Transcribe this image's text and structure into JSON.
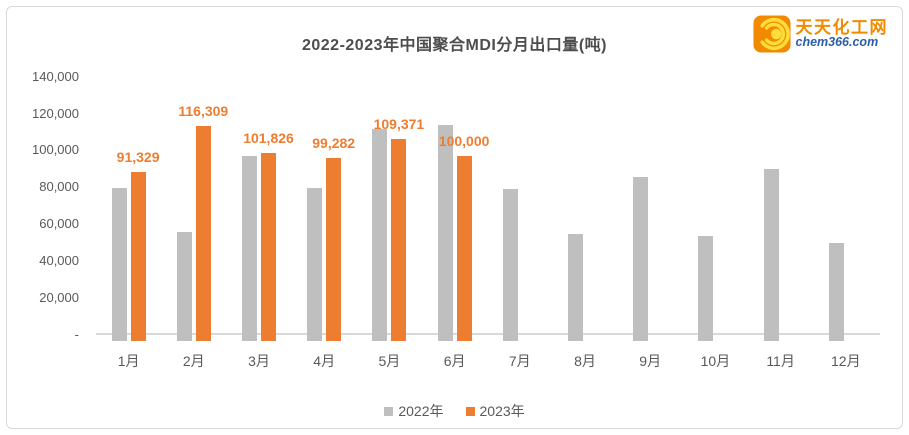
{
  "header": {
    "title": "2022-2023年中国聚合MDI分月出口量(吨)"
  },
  "brand": {
    "name": "天天化工网",
    "domain": "chem366.com",
    "icon": "swirl-logo-icon",
    "colors": {
      "orange": "#f28a00",
      "yellow": "#ffde3c",
      "blue": "#2b5ea7"
    }
  },
  "colors": {
    "series_2022": "#bfbfbf",
    "series_2023": "#ed7d31",
    "axis_text": "#595959",
    "axis_line": "#d9d9d9",
    "title_text": "#4d4d4d",
    "card_border": "#d9d9d9"
  },
  "chart_data": {
    "type": "bar",
    "title": "2022-2023年中国聚合MDI分月出口量(吨)",
    "categories": [
      "1月",
      "2月",
      "3月",
      "4月",
      "5月",
      "6月",
      "7月",
      "8月",
      "9月",
      "10月",
      "11月",
      "12月"
    ],
    "series": [
      {
        "name": "2022年",
        "color": "#bfbfbf",
        "show_labels": false,
        "values": [
          83000,
          59000,
          100500,
          83000,
          115000,
          117000,
          82500,
          58000,
          89000,
          57000,
          93000,
          53000
        ]
      },
      {
        "name": "2023年",
        "color": "#ed7d31",
        "show_labels": true,
        "values": [
          91329,
          116309,
          101826,
          99282,
          109371,
          100000,
          null,
          null,
          null,
          null,
          null,
          null
        ]
      }
    ],
    "ylim": [
      0,
      140000
    ],
    "ytick_interval": 20000,
    "ytick_labels": [
      "-",
      "20,000",
      "40,000",
      "60,000",
      "80,000",
      "100,000",
      "120,000",
      "140,000"
    ],
    "xlabel": "",
    "ylabel": "",
    "grid": false,
    "legend_position": "bottom",
    "data_label_color": "#ed7d31"
  }
}
